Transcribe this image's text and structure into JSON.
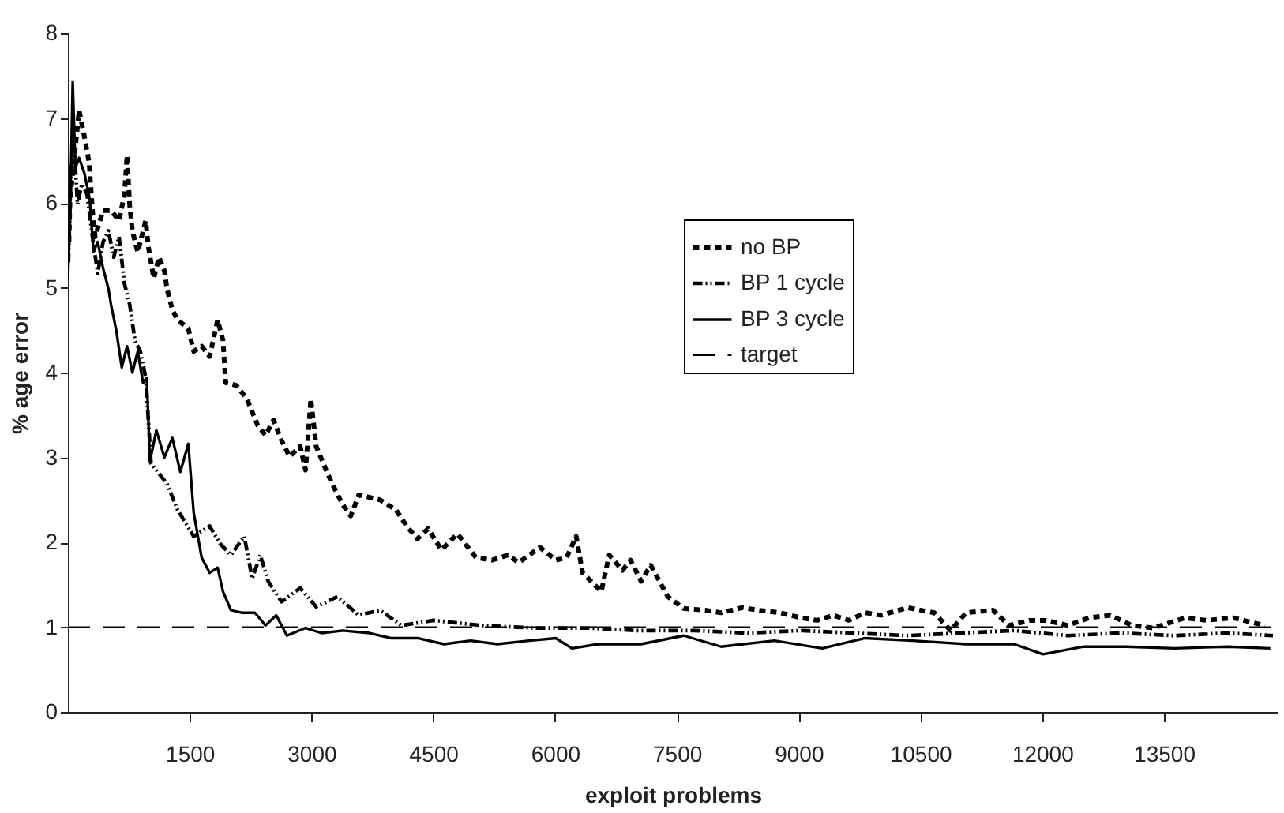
{
  "chart_data": {
    "type": "line",
    "xlabel": "exploit problems",
    "ylabel": "% age error",
    "xlim": [
      0,
      14900
    ],
    "xticks": [
      1500,
      3000,
      4500,
      6000,
      7500,
      9000,
      10500,
      12000,
      13500
    ],
    "ylim": [
      0,
      8
    ],
    "yticks": [
      0,
      1,
      2,
      3,
      4,
      5,
      6,
      7,
      8
    ],
    "grid": false,
    "legend": "right",
    "marker": "none",
    "series": [
      {
        "name": "no BP",
        "color": "#000000",
        "line_style": "dashed",
        "x": [
          13,
          26,
          72,
          138,
          203,
          262,
          302,
          335,
          433,
          531,
          630,
          696,
          728,
          761,
          794,
          860,
          958,
          991,
          1057,
          1122,
          1188,
          1220,
          1286,
          1352,
          1483,
          1549,
          1647,
          1746,
          1844,
          1910,
          1942,
          2074,
          2205,
          2336,
          2434,
          2533,
          2631,
          2730,
          2861,
          2927,
          2992,
          3058,
          3189,
          3255,
          3386,
          3484,
          3583,
          3845,
          4042,
          4173,
          4305,
          4436,
          4600,
          4797,
          5026,
          5223,
          5420,
          5551,
          5814,
          6010,
          6142,
          6260,
          6339,
          6569,
          6667,
          6831,
          6929,
          7060,
          7178,
          7388,
          7585,
          7848,
          8045,
          8308,
          8505,
          8768,
          9030,
          9229,
          9422,
          9619,
          9819,
          10017,
          10340,
          10670,
          10870,
          11064,
          11395,
          11590,
          11850,
          12050,
          12314,
          12577,
          12840,
          13103,
          13365,
          13759,
          14021,
          14350,
          14744
        ],
        "values": [
          5.54,
          6.04,
          6.47,
          7.09,
          6.78,
          6.47,
          5.91,
          5.6,
          5.91,
          5.91,
          5.79,
          6.1,
          6.56,
          5.97,
          5.67,
          5.42,
          5.79,
          5.48,
          5.11,
          5.36,
          5.2,
          4.99,
          4.74,
          4.62,
          4.52,
          4.25,
          4.31,
          4.19,
          4.62,
          4.38,
          3.88,
          3.85,
          3.69,
          3.38,
          3.26,
          3.44,
          3.2,
          3.01,
          3.13,
          2.85,
          3.69,
          3.13,
          2.83,
          2.69,
          2.44,
          2.31,
          2.56,
          2.5,
          2.38,
          2.19,
          2.04,
          2.16,
          1.91,
          2.1,
          1.82,
          1.79,
          1.85,
          1.76,
          1.94,
          1.79,
          1.82,
          2.07,
          1.64,
          1.42,
          1.85,
          1.67,
          1.79,
          1.54,
          1.73,
          1.36,
          1.22,
          1.2,
          1.17,
          1.23,
          1.2,
          1.17,
          1.11,
          1.08,
          1.14,
          1.08,
          1.17,
          1.14,
          1.23,
          1.17,
          0.96,
          1.17,
          1.2,
          1.02,
          1.08,
          1.08,
          1.02,
          1.11,
          1.14,
          1.02,
          0.99,
          1.11,
          1.08,
          1.11,
          1.02
        ]
      },
      {
        "name": "BP 1 cycle",
        "color": "#000000",
        "line_style": "dotted",
        "x": [
          7,
          39,
          79,
          118,
          171,
          236,
          302,
          367,
          433,
          499,
          564,
          630,
          696,
          761,
          827,
          892,
          958,
          1024,
          1220,
          1352,
          1549,
          1746,
          1877,
          2008,
          2172,
          2270,
          2369,
          2467,
          2631,
          2861,
          3058,
          3320,
          3583,
          3845,
          4108,
          4502,
          5092,
          5748,
          6404,
          6995,
          7716,
          8373,
          9030,
          9685,
          10340,
          10997,
          11653,
          12314,
          12971,
          13627,
          14284,
          14842
        ],
        "values": [
          5.3,
          6.41,
          6.65,
          5.98,
          6.22,
          6.1,
          5.6,
          5.17,
          5.54,
          5.67,
          5.36,
          5.6,
          5.05,
          4.8,
          4.37,
          4.25,
          3.94,
          2.93,
          2.69,
          2.38,
          2.07,
          2.19,
          1.98,
          1.85,
          2.07,
          1.57,
          1.85,
          1.54,
          1.3,
          1.46,
          1.24,
          1.36,
          1.14,
          1.2,
          1.02,
          1.08,
          1.02,
          0.99,
          0.99,
          0.96,
          0.96,
          0.93,
          0.96,
          0.93,
          0.9,
          0.93,
          0.96,
          0.9,
          0.93,
          0.9,
          0.93,
          0.9
        ]
      },
      {
        "name": "BP 3 cycle",
        "color": "#000000",
        "line_style": "solid",
        "x": [
          0,
          26,
          59,
          92,
          138,
          203,
          269,
          315,
          367,
          433,
          499,
          531,
          597,
          663,
          728,
          794,
          860,
          925,
          971,
          1010,
          1089,
          1188,
          1286,
          1385,
          1483,
          1549,
          1647,
          1746,
          1844,
          1910,
          2008,
          2139,
          2303,
          2434,
          2566,
          2697,
          2927,
          3124,
          3386,
          3714,
          3976,
          4305,
          4633,
          4961,
          5289,
          5683,
          6010,
          6207,
          6535,
          6864,
          7060,
          7585,
          8045,
          8701,
          9291,
          9819,
          10405,
          11064,
          11653,
          12009,
          12511,
          13037,
          13627,
          14284,
          14809
        ],
        "values": [
          5.11,
          5.79,
          7.43,
          6.41,
          6.53,
          6.35,
          6.04,
          5.42,
          5.54,
          5.23,
          4.99,
          4.8,
          4.49,
          4.06,
          4.31,
          4.0,
          4.25,
          3.88,
          3.94,
          2.95,
          3.32,
          3.0,
          3.23,
          2.83,
          3.16,
          2.35,
          1.82,
          1.64,
          1.7,
          1.42,
          1.2,
          1.17,
          1.17,
          1.02,
          1.14,
          0.9,
          0.99,
          0.93,
          0.96,
          0.93,
          0.87,
          0.87,
          0.8,
          0.84,
          0.8,
          0.84,
          0.87,
          0.75,
          0.8,
          0.8,
          0.8,
          0.9,
          0.77,
          0.84,
          0.75,
          0.87,
          0.84,
          0.8,
          0.8,
          0.68,
          0.77,
          0.77,
          0.75,
          0.77,
          0.75
        ]
      },
      {
        "name": "target",
        "color": "#000000",
        "line_style": "dashed",
        "x": [
          0,
          14850
        ],
        "values": [
          1,
          1
        ]
      }
    ]
  }
}
